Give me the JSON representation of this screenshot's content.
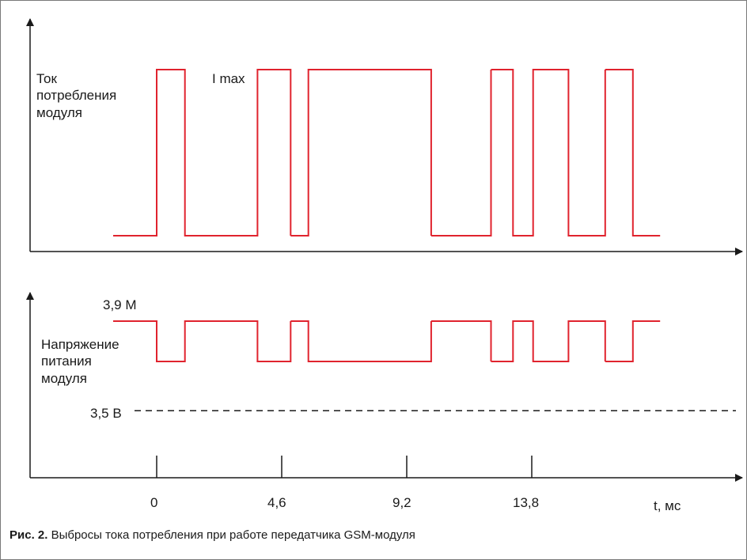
{
  "chart_data": [
    {
      "type": "line",
      "step": true,
      "series": [
        {
          "color": "#e0232e",
          "segments": [
            {
              "x": [
                -1.6,
                0,
                0,
                1.04,
                1.04,
                3.71,
                3.71,
                4.93,
                4.93
              ],
              "y": [
                0,
                0,
                1,
                1,
                0,
                0,
                1,
                1,
                0
              ]
            },
            {
              "x": [
                4.93,
                5.58,
                5.58,
                10.1,
                10.1
              ],
              "y": [
                0,
                0,
                1,
                1,
                0
              ]
            },
            {
              "x": [
                10.1,
                12.3,
                12.3
              ],
              "y": [
                0,
                0,
                1
              ]
            },
            {
              "x": [
                12.3,
                13.11,
                13.11,
                13.85,
                13.85,
                15.15,
                15.15,
                16.5,
                16.5
              ],
              "y": [
                1,
                1,
                0,
                0,
                1,
                1,
                0,
                0,
                1
              ]
            },
            {
              "x": [
                16.5,
                17.52,
                17.52,
                18.52
              ],
              "y": [
                1,
                1,
                0,
                0
              ]
            }
          ]
        }
      ],
      "ylabel": [
        "Ток",
        "потребления",
        "модуля"
      ],
      "annotations": [
        "I max"
      ]
    },
    {
      "type": "line",
      "step": true,
      "series": [
        {
          "color": "#e0232e",
          "segments": [
            {
              "x": [
                -1.6,
                0,
                0,
                1.04,
                1.04,
                3.71,
                3.71,
                4.93,
                4.93
              ],
              "y": [
                3.9,
                3.9,
                3.72,
                3.72,
                3.9,
                3.9,
                3.72,
                3.72,
                3.9
              ]
            },
            {
              "x": [
                4.93,
                5.58,
                5.58,
                10.1,
                10.1
              ],
              "y": [
                3.9,
                3.9,
                3.72,
                3.72,
                3.9
              ]
            },
            {
              "x": [
                10.1,
                12.3,
                12.3
              ],
              "y": [
                3.9,
                3.9,
                3.72
              ]
            },
            {
              "x": [
                12.3,
                13.11,
                13.11,
                13.85,
                13.85,
                15.15,
                15.15,
                16.5,
                16.5
              ],
              "y": [
                3.72,
                3.72,
                3.9,
                3.9,
                3.72,
                3.72,
                3.9,
                3.9,
                3.72
              ]
            },
            {
              "x": [
                16.5,
                17.52,
                17.52,
                18.52
              ],
              "y": [
                3.72,
                3.72,
                3.9,
                3.9
              ]
            }
          ]
        }
      ],
      "reference_lines": [
        {
          "y": 3.5,
          "style": "dashed",
          "label": "3,5 В"
        }
      ],
      "ytick_labels": [
        {
          "y": 3.9,
          "label": "3,9 М"
        }
      ],
      "ylabel": [
        "Напряжение",
        "питания",
        "модуля"
      ],
      "xticks": [
        0,
        4.6,
        9.2,
        13.8
      ],
      "xtick_labels": [
        "0",
        "4,6",
        "9,2",
        "13,8"
      ],
      "xlabel": "t, мс"
    }
  ],
  "caption": {
    "label": "Рис. 2.",
    "text": " Выбросы тока потребления при работе передатчика GSM-модуля"
  },
  "colors": {
    "signal": "#e0232e",
    "axis": "#1a1a1a",
    "text": "#1a1a1a",
    "frame": "#7a7a7a"
  }
}
